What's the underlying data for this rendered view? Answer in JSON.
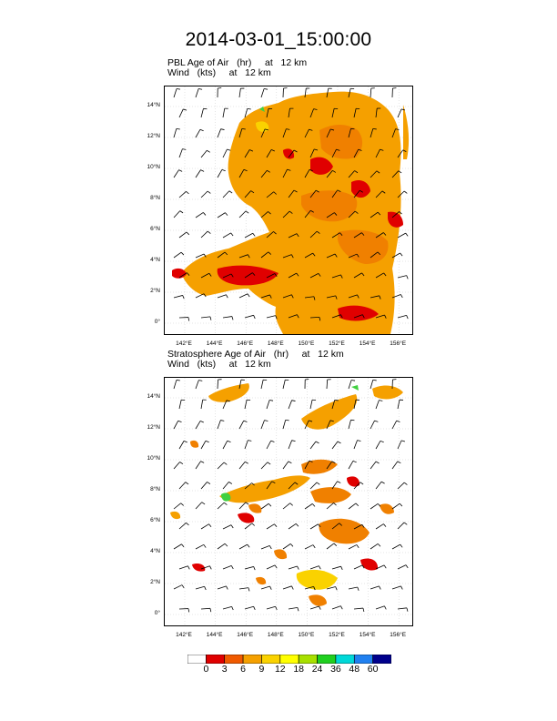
{
  "title": "2014-03-01_15:00:00",
  "panels": [
    {
      "title_line1": "PBL Age of Air   (hr)     at   12 km",
      "title_line2": "Wind   (kts)     at   12 km"
    },
    {
      "title_line1": "Stratosphere Age of Air   (hr)     at   12 km",
      "title_line2": "Wind   (kts)     at   12 km"
    }
  ],
  "y_ticks": [
    "14°N",
    "12°N",
    "10°N",
    "8°N",
    "6°N",
    "4°N",
    "2°N",
    "0°"
  ],
  "x_ticks": [
    "142°E",
    "144°E",
    "146°E",
    "148°E",
    "150°E",
    "152°E",
    "154°E",
    "156°E"
  ],
  "colorbar": {
    "labels": [
      "0",
      "3",
      "6",
      "9",
      "12",
      "18",
      "24",
      "36",
      "48",
      "60"
    ],
    "colors": [
      "#ffffff",
      "#e00000",
      "#f05a00",
      "#f5a000",
      "#fad200",
      "#ffff00",
      "#a8e000",
      "#20d020",
      "#00d8d8",
      "#2080f0",
      "#00008c"
    ]
  },
  "colors": {
    "light_orange": "#f5a000",
    "orange": "#f08000",
    "red": "#e00000",
    "yellow": "#fad200",
    "green": "#40d040",
    "barb": "#000000"
  }
}
